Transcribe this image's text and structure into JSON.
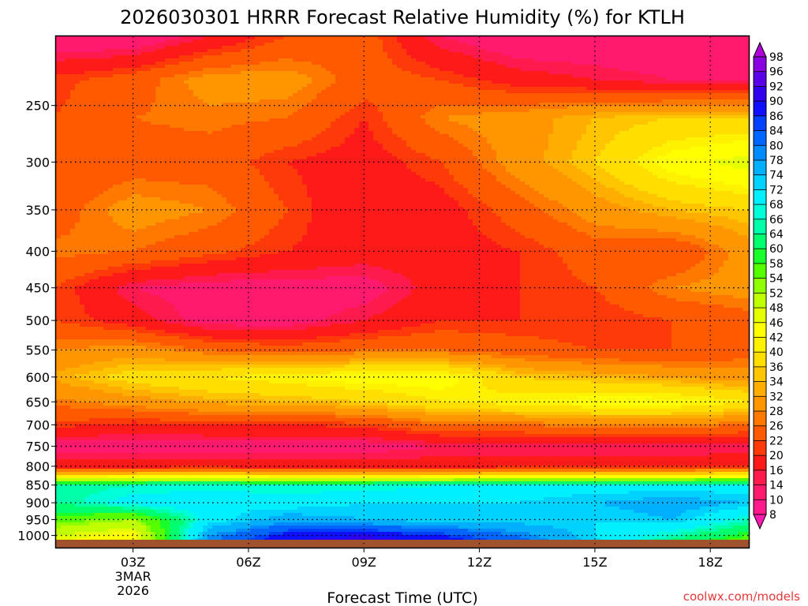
{
  "chart_data": {
    "type": "heatmap",
    "title": "2026030301 HRRR Forecast Relative Humidity (%) for KTLH",
    "xlabel": "Forecast Time (UTC)",
    "ylabel": "",
    "y_scale": "log-pressure",
    "y_ticks": [
      250,
      300,
      350,
      400,
      450,
      500,
      550,
      600,
      650,
      700,
      750,
      800,
      850,
      900,
      950,
      1000
    ],
    "x_ticks": [
      {
        "label": "03Z",
        "sub1": "3MAR",
        "sub2": "2026",
        "hour": 3
      },
      {
        "label": "06Z",
        "hour": 6
      },
      {
        "label": "09Z",
        "hour": 9
      },
      {
        "label": "12Z",
        "hour": 12
      },
      {
        "label": "15Z",
        "hour": 15
      },
      {
        "label": "18Z",
        "hour": 18
      }
    ],
    "x_range_hours": [
      1,
      19
    ],
    "p_range": [
      200,
      1040
    ],
    "grid": true,
    "colorbar": {
      "levels": [
        8,
        10,
        14,
        16,
        20,
        22,
        26,
        28,
        32,
        34,
        36,
        40,
        42,
        46,
        48,
        52,
        54,
        58,
        60,
        64,
        66,
        68,
        72,
        74,
        78,
        80,
        84,
        86,
        90,
        92,
        96,
        98
      ],
      "colors": [
        "#ff1ab0",
        "#ff1a8c",
        "#ff1a6e",
        "#ff1a4d",
        "#ff1a1a",
        "#ff3a0a",
        "#ff5a00",
        "#ff7800",
        "#ff9600",
        "#ffae00",
        "#ffc600",
        "#ffde00",
        "#fff200",
        "#ffff00",
        "#e6ff00",
        "#c0ff00",
        "#90ff00",
        "#55ff00",
        "#1aff2a",
        "#00ff6e",
        "#00ffa8",
        "#00ffd8",
        "#00f0ff",
        "#00d2ff",
        "#00b0ff",
        "#008cff",
        "#0066ff",
        "#0040ff",
        "#1010ff",
        "#3000ee",
        "#5a00e8",
        "#8a00e0",
        "#b000d8"
      ]
    },
    "profiles": [
      {
        "hour": 1,
        "p": [
          200,
          230,
          260,
          300,
          350,
          400,
          450,
          500,
          550,
          600,
          650,
          700,
          750,
          800,
          820,
          850,
          900,
          950,
          1000,
          1040
        ],
        "rh": [
          10,
          21,
          22,
          22,
          24,
          27,
          22,
          22,
          28,
          33,
          27,
          21,
          12,
          18,
          34,
          64,
          64,
          56,
          48,
          45
        ]
      },
      {
        "hour": 3,
        "p": [
          200,
          230,
          260,
          300,
          350,
          400,
          450,
          500,
          550,
          600,
          650,
          700,
          750,
          800,
          820,
          850,
          900,
          950,
          1000,
          1040
        ],
        "rh": [
          10,
          24,
          26,
          24,
          30,
          26,
          14,
          18,
          30,
          38,
          30,
          19,
          12,
          18,
          35,
          66,
          70,
          52,
          44,
          42
        ]
      },
      {
        "hour": 5,
        "p": [
          200,
          230,
          260,
          300,
          350,
          400,
          450,
          500,
          550,
          600,
          650,
          700,
          750,
          800,
          820,
          850,
          900,
          950,
          1000,
          1040
        ],
        "rh": [
          16,
          30,
          27,
          24,
          28,
          23,
          12,
          12,
          26,
          40,
          33,
          20,
          12,
          18,
          36,
          66,
          72,
          70,
          78,
          80
        ]
      },
      {
        "hour": 7,
        "p": [
          200,
          230,
          260,
          300,
          350,
          400,
          450,
          500,
          550,
          600,
          650,
          700,
          750,
          800,
          820,
          850,
          900,
          950,
          1000,
          1040
        ],
        "rh": [
          22,
          30,
          26,
          20,
          22,
          20,
          12,
          12,
          24,
          42,
          34,
          20,
          12,
          18,
          34,
          66,
          70,
          76,
          88,
          92
        ]
      },
      {
        "hour": 9,
        "p": [
          200,
          230,
          260,
          300,
          350,
          400,
          450,
          500,
          550,
          600,
          650,
          700,
          750,
          800,
          820,
          850,
          900,
          950,
          1000,
          1040
        ],
        "rh": [
          24,
          24,
          20,
          18,
          16,
          18,
          12,
          16,
          26,
          44,
          36,
          21,
          12,
          18,
          34,
          66,
          72,
          74,
          90,
          94
        ]
      },
      {
        "hour": 11,
        "p": [
          200,
          230,
          260,
          300,
          350,
          400,
          450,
          500,
          550,
          600,
          650,
          700,
          750,
          800,
          820,
          850,
          900,
          950,
          1000,
          1040
        ],
        "rh": [
          14,
          22,
          28,
          22,
          18,
          18,
          18,
          20,
          26,
          44,
          40,
          26,
          14,
          18,
          34,
          68,
          72,
          72,
          86,
          92
        ]
      },
      {
        "hour": 13,
        "p": [
          200,
          230,
          260,
          300,
          350,
          400,
          450,
          500,
          550,
          600,
          650,
          700,
          750,
          800,
          820,
          850,
          900,
          950,
          1000,
          1040
        ],
        "rh": [
          10,
          18,
          30,
          30,
          24,
          20,
          20,
          20,
          24,
          36,
          42,
          26,
          14,
          18,
          36,
          70,
          72,
          72,
          80,
          84
        ]
      },
      {
        "hour": 15,
        "p": [
          200,
          230,
          260,
          300,
          350,
          400,
          450,
          500,
          550,
          600,
          650,
          700,
          750,
          800,
          820,
          850,
          900,
          950,
          1000,
          1040
        ],
        "rh": [
          10,
          16,
          34,
          36,
          30,
          24,
          22,
          20,
          22,
          34,
          44,
          28,
          14,
          18,
          36,
          70,
          74,
          72,
          72,
          74
        ]
      },
      {
        "hour": 17,
        "p": [
          200,
          230,
          260,
          300,
          350,
          400,
          450,
          500,
          550,
          600,
          650,
          700,
          750,
          800,
          820,
          850,
          900,
          950,
          1000,
          1040
        ],
        "rh": [
          10,
          14,
          36,
          44,
          34,
          22,
          28,
          22,
          22,
          32,
          44,
          28,
          14,
          18,
          36,
          70,
          76,
          74,
          66,
          60
        ]
      },
      {
        "hour": 19,
        "p": [
          200,
          230,
          260,
          300,
          350,
          400,
          450,
          500,
          550,
          600,
          650,
          700,
          750,
          800,
          820,
          850,
          900,
          950,
          1000,
          1040
        ],
        "rh": [
          10,
          14,
          36,
          48,
          36,
          30,
          30,
          24,
          24,
          30,
          40,
          26,
          14,
          20,
          38,
          70,
          74,
          66,
          58,
          52
        ]
      }
    ]
  },
  "credit": "coolwx.com/models"
}
